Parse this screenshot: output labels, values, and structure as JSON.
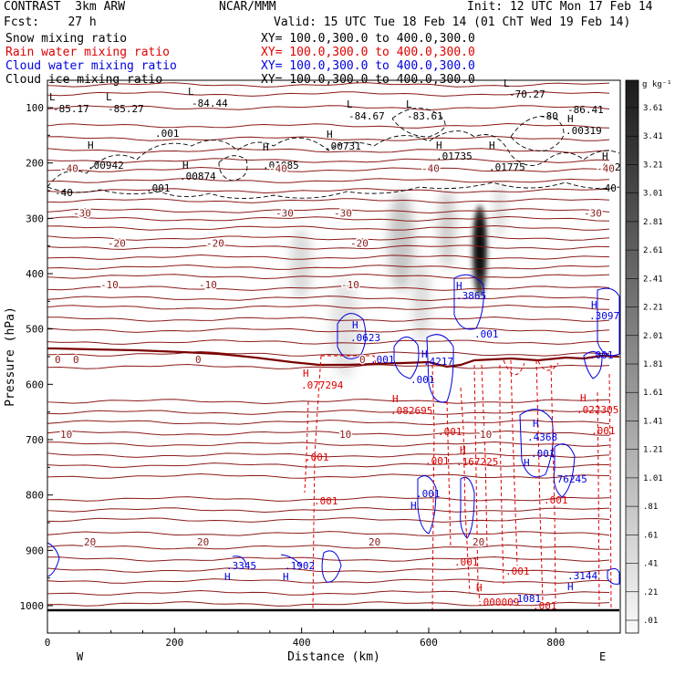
{
  "header": {
    "left1": "CONTRAST  3km ARW",
    "center1": "NCAR/MMM",
    "right1": "Init: 12 UTC Mon 17 Feb 14",
    "left2": "Fcst:    27 h",
    "right2": "Valid: 15 UTC Tue 18 Feb 14 (01 ChT Wed 19 Feb 14)",
    "xy": "XY= 100.0,300.0 to 400.0,300.0"
  },
  "fields": [
    {
      "label": "Snow mixing ratio",
      "color": "#000000"
    },
    {
      "label": "Rain water mixing ratio",
      "color": "#e00000"
    },
    {
      "label": "Cloud water mixing ratio",
      "color": "#0000e0"
    },
    {
      "label": "Cloud ice mixing ratio",
      "color": "#000000"
    }
  ],
  "colorbar": {
    "unit": "g kg⁻¹",
    "labels": [
      "3.61",
      "3.41",
      "3.21",
      "3.01",
      "2.81",
      "2.61",
      "2.41",
      "2.21",
      "2.01",
      "1.81",
      "1.61",
      "1.41",
      "1.21",
      "1.01",
      ".81",
      ".61",
      ".41",
      ".21",
      ".01"
    ]
  },
  "chart_data": {
    "type": "contour",
    "xlabel": "Distance (km)",
    "ylabel": "Pressure (hPa)",
    "xlim": [
      0,
      900
    ],
    "ylim": [
      1050,
      50
    ],
    "x_ticks": [
      0,
      200,
      400,
      600,
      800
    ],
    "y_ticks": [
      100,
      200,
      300,
      400,
      500,
      600,
      700,
      800,
      900,
      1000
    ],
    "x_end_labels": {
      "left": "W",
      "right": "E"
    },
    "temperature_levels": [
      {
        "label": "-40",
        "p": 210
      },
      {
        "label": "-30",
        "p": 290
      },
      {
        "label": "-20",
        "p": 345
      },
      {
        "label": "-10",
        "p": 420
      },
      {
        "label": "0",
        "p": 555
      },
      {
        "label": "10",
        "p": 690
      },
      {
        "label": "20",
        "p": 885
      }
    ],
    "text_labels": {
      "black": [
        "L",
        "-85.17",
        "L",
        "-85.27",
        "L",
        "-84.44",
        "L",
        "-84.67",
        "L",
        "-83.61",
        "L",
        "-70.27",
        "-86.41",
        "-80",
        "H",
        ".00319",
        ".001",
        "H",
        ".00731",
        "H",
        ".00942",
        "H",
        ".00874",
        ".001",
        "H",
        ".01085",
        "H",
        ".01735",
        "H",
        ".01775",
        "H",
        ".012",
        "-40",
        "-40"
      ],
      "red": [
        "H",
        ".077294",
        "H",
        ".082695",
        ".001",
        "H",
        ".167225",
        ".001",
        ".001",
        ".001",
        ".001",
        "H",
        ".022305",
        ".001",
        ".001",
        "H",
        ".000009",
        ".001",
        ".001"
      ],
      "blue": [
        "H",
        ".0623",
        ".001",
        "H",
        ".4217",
        ".001",
        "H",
        ".3865",
        ".001",
        "H",
        ".3097",
        ".001",
        "H",
        ".4368",
        ".001",
        "H",
        ".76245",
        ".001",
        "H",
        ".3345",
        "H",
        ".1902",
        "H",
        ".3144",
        "H",
        ".1081"
      ]
    }
  }
}
